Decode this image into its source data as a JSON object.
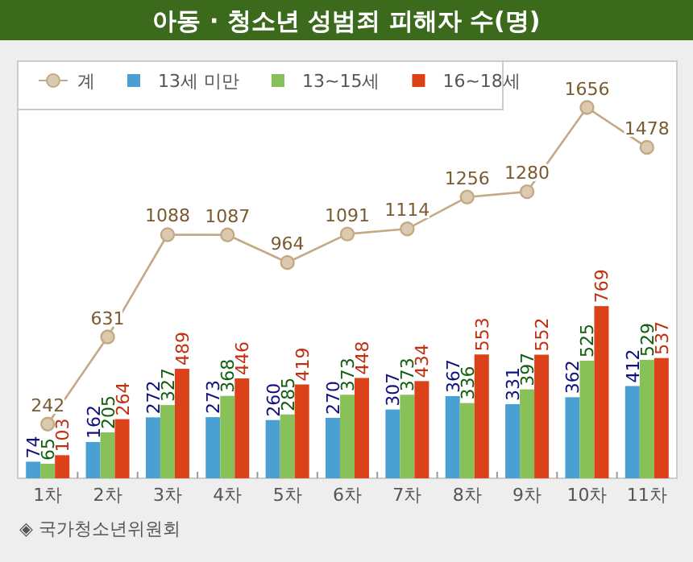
{
  "chart_data": {
    "type": "bar",
    "title": "아동 · 청소년 성범죄 피해자 수(명)",
    "categories": [
      "1차",
      "2차",
      "3차",
      "4차",
      "5차",
      "6차",
      "7차",
      "8차",
      "9차",
      "10차",
      "11차"
    ],
    "series": [
      {
        "name": "계",
        "type": "line",
        "color": "#c4aa84",
        "marker": "circle",
        "values": [
          242,
          631,
          1088,
          1087,
          964,
          1091,
          1114,
          1256,
          1280,
          1656,
          1478
        ]
      },
      {
        "name": "13세 미만",
        "color": "#4aa0d2",
        "values": [
          74,
          162,
          272,
          273,
          260,
          270,
          307,
          367,
          331,
          362,
          412
        ]
      },
      {
        "name": "13~15세",
        "color": "#88c157",
        "values": [
          65,
          205,
          327,
          368,
          285,
          373,
          373,
          336,
          397,
          525,
          529
        ]
      },
      {
        "name": "16~18세",
        "color": "#dc421a",
        "values": [
          103,
          264,
          489,
          446,
          419,
          448,
          434,
          553,
          552,
          769,
          537
        ]
      }
    ],
    "data_labels": true,
    "legend": "top left",
    "grid": false,
    "annotations": [
      "◈ 국가청소년위원회"
    ]
  }
}
